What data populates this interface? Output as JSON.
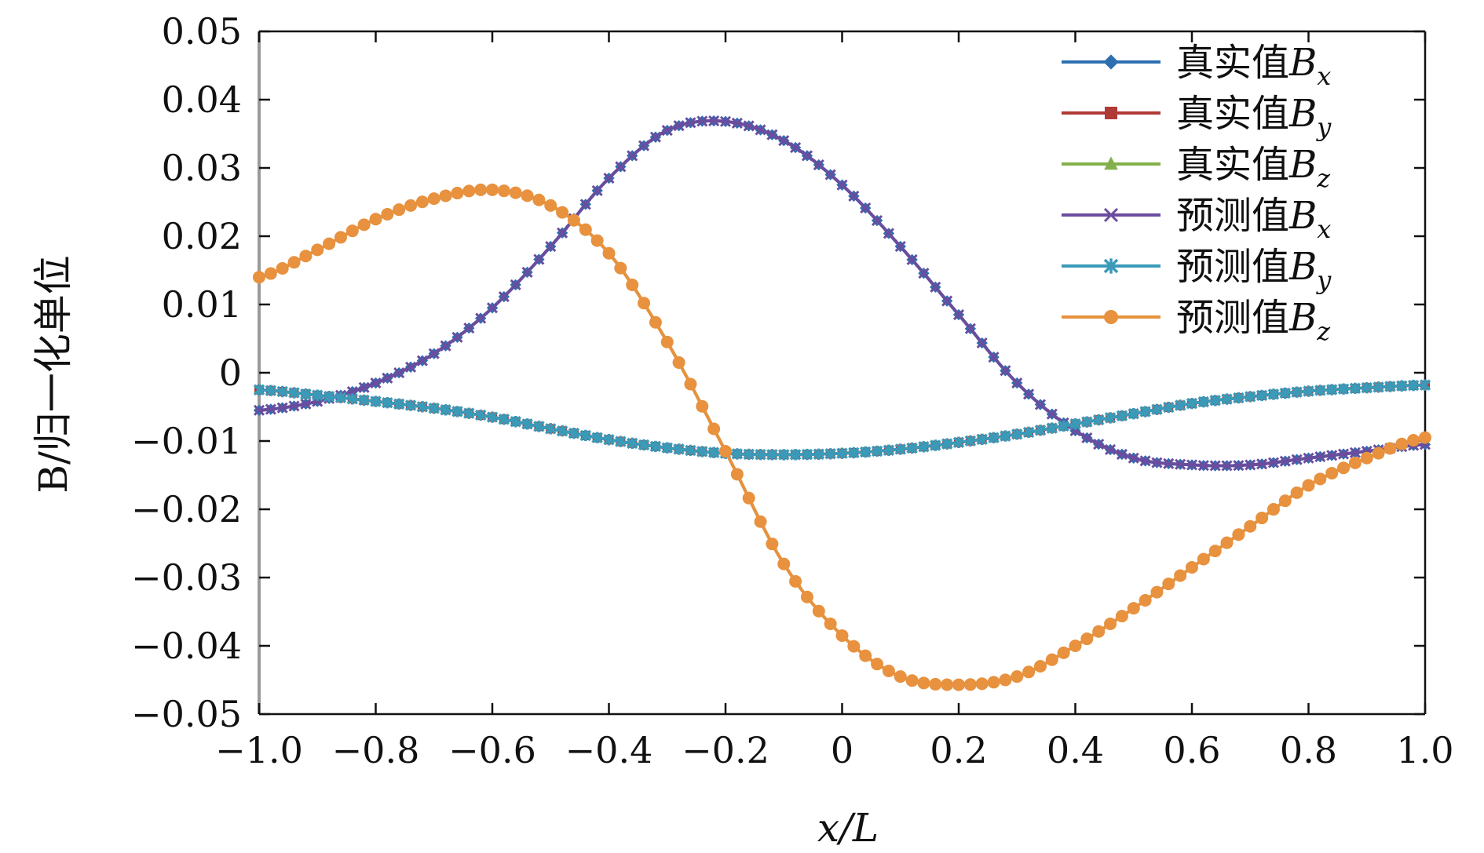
{
  "chart_data": {
    "type": "line",
    "title": "",
    "xlabel": "x/L",
    "ylabel": "B/归一化单位",
    "xlim": [
      -1.0,
      1.0
    ],
    "ylim": [
      -0.05,
      0.05
    ],
    "x_ticks": [
      -1.0,
      -0.8,
      -0.6,
      -0.4,
      -0.2,
      0,
      0.2,
      0.4,
      0.6,
      0.8,
      1.0
    ],
    "x_tick_labels": [
      "−1.0",
      "−0.8",
      "−0.6",
      "−0.4",
      "−0.2",
      "0",
      "0.2",
      "0.4",
      "0.6",
      "0.8",
      "1.0"
    ],
    "y_ticks": [
      0.05,
      0.04,
      0.03,
      0.02,
      0.01,
      0,
      -0.01,
      -0.02,
      -0.03,
      -0.04,
      -0.05
    ],
    "y_tick_labels": [
      "0.05",
      "0.04",
      "0.03",
      "0.02",
      "0.01",
      "0",
      "−0.01",
      "−0.02",
      "−0.03",
      "−0.04",
      "−0.05"
    ],
    "grid": false,
    "legend_position": "top-right",
    "x": [
      -1.0,
      -0.9,
      -0.8,
      -0.7,
      -0.6,
      -0.5,
      -0.4,
      -0.3,
      -0.2,
      -0.1,
      0.0,
      0.1,
      0.2,
      0.3,
      0.4,
      0.5,
      0.6,
      0.7,
      0.8,
      0.9,
      1.0
    ],
    "series": [
      {
        "name": "真实值Bx",
        "prefix": "真实值",
        "sub": "x",
        "color": "#2E6FB0",
        "marker": "diamond",
        "values": [
          -0.0055,
          -0.0042,
          -0.0015,
          0.0028,
          0.0095,
          0.0185,
          0.0285,
          0.0355,
          0.0368,
          0.034,
          0.0275,
          0.0185,
          0.0085,
          -0.0015,
          -0.0085,
          -0.0125,
          -0.0135,
          -0.0135,
          -0.0125,
          -0.0115,
          -0.0105
        ]
      },
      {
        "name": "真实值By",
        "prefix": "真实值",
        "sub": "y",
        "color": "#B03A36",
        "marker": "square",
        "values": [
          -0.0025,
          -0.0033,
          -0.0042,
          -0.0052,
          -0.0065,
          -0.0082,
          -0.0098,
          -0.011,
          -0.0118,
          -0.012,
          -0.0118,
          -0.0112,
          -0.0102,
          -0.009,
          -0.0075,
          -0.006,
          -0.0045,
          -0.0035,
          -0.0027,
          -0.0022,
          -0.0018
        ]
      },
      {
        "name": "真实值Bz",
        "prefix": "真实值",
        "sub": "z",
        "color": "#84B04B",
        "marker": "triangle",
        "values": [
          0.014,
          0.018,
          0.0225,
          0.0255,
          0.0268,
          0.0245,
          0.0175,
          0.0045,
          -0.0115,
          -0.028,
          -0.0385,
          -0.0445,
          -0.0457,
          -0.0445,
          -0.04,
          -0.0345,
          -0.0285,
          -0.0225,
          -0.0165,
          -0.0125,
          -0.0095
        ]
      },
      {
        "name": "预测值Bx",
        "prefix": "预测值",
        "sub": "x",
        "color": "#6A4D9E",
        "marker": "x",
        "values": [
          -0.0055,
          -0.0042,
          -0.0015,
          0.0028,
          0.0095,
          0.0185,
          0.0285,
          0.0355,
          0.0368,
          0.034,
          0.0275,
          0.0185,
          0.0085,
          -0.0015,
          -0.0085,
          -0.0125,
          -0.0135,
          -0.0135,
          -0.0125,
          -0.0115,
          -0.0105
        ]
      },
      {
        "name": "预测值By",
        "prefix": "预测值",
        "sub": "y",
        "color": "#3A9AB8",
        "marker": "star",
        "values": [
          -0.0025,
          -0.0033,
          -0.0042,
          -0.0052,
          -0.0065,
          -0.0082,
          -0.0098,
          -0.011,
          -0.0118,
          -0.012,
          -0.0118,
          -0.0112,
          -0.0102,
          -0.009,
          -0.0075,
          -0.006,
          -0.0045,
          -0.0035,
          -0.0027,
          -0.0022,
          -0.0018
        ]
      },
      {
        "name": "预测值Bz",
        "prefix": "预测值",
        "sub": "z",
        "color": "#E8913E",
        "marker": "circle",
        "values": [
          0.014,
          0.018,
          0.0225,
          0.0255,
          0.0268,
          0.0245,
          0.0175,
          0.0045,
          -0.0115,
          -0.028,
          -0.0385,
          -0.0445,
          -0.0457,
          -0.0445,
          -0.04,
          -0.0345,
          -0.0285,
          -0.0225,
          -0.0165,
          -0.0125,
          -0.0095
        ]
      }
    ]
  }
}
